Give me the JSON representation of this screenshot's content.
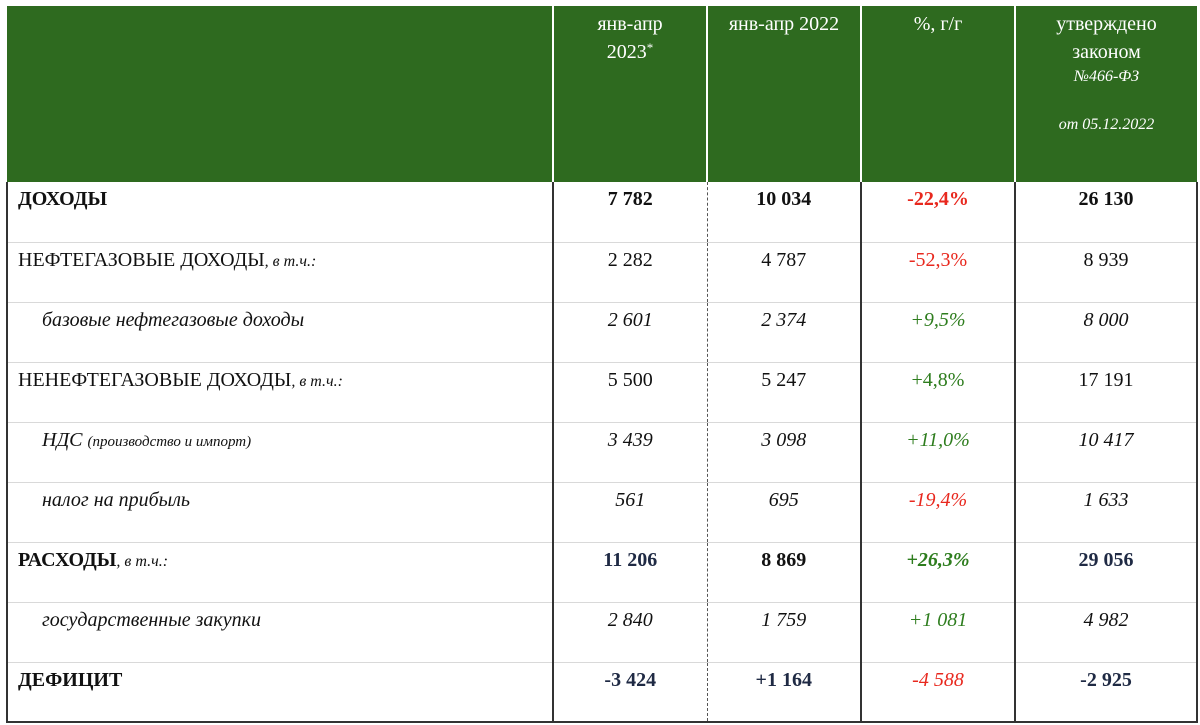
{
  "header": {
    "col1_line1": "янв-апр",
    "col1_line2": "2023",
    "col1_mark": "*",
    "col2": "янв-апр 2022",
    "col3": "%, г/г",
    "col4_line1": "утверждено",
    "col4_line2": "законом",
    "col4_law": "№466-ФЗ",
    "col4_date": "от 05.12.2022"
  },
  "rows": [
    {
      "label": "ДОХОДЫ",
      "note": "",
      "v2023": "7 782",
      "v2022": "10 034",
      "pct": "-22,4%",
      "law": "26 130"
    },
    {
      "label": "НЕФТЕГАЗОВЫЕ ДОХОДЫ",
      "note": ", в т.ч.:",
      "v2023": "2 282",
      "v2022": "4 787",
      "pct": "-52,3%",
      "law": "8 939"
    },
    {
      "label": "базовые нефтегазовые доходы",
      "note": "",
      "v2023": "2 601",
      "v2022": "2 374",
      "pct": "+9,5%",
      "law": "8 000"
    },
    {
      "label": "НЕНЕФТЕГАЗОВЫЕ ДОХОДЫ",
      "note": ", в т.ч.:",
      "v2023": "5 500",
      "v2022": "5 247",
      "pct": "+4,8%",
      "law": "17 191"
    },
    {
      "label": "НДС",
      "note": "(производство и импорт)",
      "v2023": "3 439",
      "v2022": "3 098",
      "pct": "+11,0%",
      "law": "10 417"
    },
    {
      "label": "налог на прибыль",
      "note": "",
      "v2023": "561",
      "v2022": "695",
      "pct": "-19,4%",
      "law": "1 633"
    },
    {
      "label": "РАСХОДЫ",
      "note": ", в т.ч.:",
      "v2023": "11 206",
      "v2022": "8 869",
      "pct": "+26,3%",
      "law": "29 056"
    },
    {
      "label": "государственные закупки",
      "note": "",
      "v2023": "2 840",
      "v2022": "1 759",
      "pct": "+1 081",
      "law": "4 982"
    },
    {
      "label": "ДЕФИЦИТ",
      "note": "",
      "v2023": "-3 424",
      "v2022": "+1 164",
      "pct": "-4 588",
      "law": "-2 925"
    }
  ],
  "colors": {
    "header_bg": "#2e6a1f",
    "negative": "#e8281e",
    "positive": "#2e7d1e",
    "navy": "#1f2a44"
  }
}
